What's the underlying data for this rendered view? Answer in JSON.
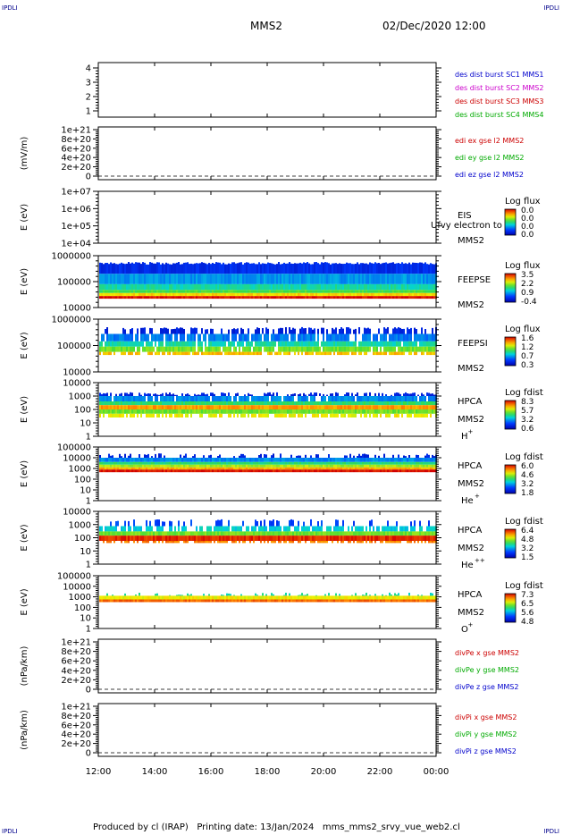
{
  "corners": {
    "tl": "IPDLI",
    "tr": "IPDLI",
    "bl": "IPDLI",
    "br": "IPDLI"
  },
  "header": {
    "spacecraft": "MMS2",
    "datetime": "02/Dec/2020 12:00"
  },
  "footer": {
    "text": "Produced by cl (IRAP)   Printing date: 13/Jan/2024   mms_mms2_srvy_vue_web2.cl"
  },
  "colors": {
    "panel_bg": "#ffffff",
    "axis": "#000000",
    "corner_text": "#00008b"
  },
  "chart_data": [
    {
      "type": "line",
      "ticks": [
        "4",
        "3",
        "2",
        "1"
      ],
      "ylim": [
        0.5,
        4.5
      ],
      "legend": [
        {
          "name": "des dist burst SC1 MMS1",
          "color": "#0000cc"
        },
        {
          "name": "des dist burst SC2 MMS2",
          "color": "#cc00cc"
        },
        {
          "name": "des dist burst SC3 MMS3",
          "color": "#cc0000"
        },
        {
          "name": "des dist burst SC4 MMS4",
          "color": "#00aa00"
        }
      ]
    },
    {
      "type": "line",
      "ylabel": "(mV/m)",
      "ticks": [
        "1e+21",
        "8e+20",
        "6e+20",
        "4e+20",
        "2e+20",
        "0"
      ],
      "ylim": [
        0,
        1e+21
      ],
      "legend": [
        {
          "name": "edi ex gse l2 MMS2",
          "color": "#cc0000"
        },
        {
          "name": "edi ey gse l2 MMS2",
          "color": "#00aa00"
        },
        {
          "name": "edi ez gse l2 MMS2",
          "color": "#0000cc"
        }
      ]
    },
    {
      "type": "heatmap",
      "ylabel": "E (eV)",
      "ticks": [
        "1e+07",
        "1e+06",
        "1e+05",
        "1e+04"
      ],
      "ylim": [
        10000.0,
        10000000.0
      ],
      "scale": "log",
      "instrument": "EIS",
      "sc": "MMS2",
      "overlay": "Ufvy electron to",
      "cbar_title": "Log flux",
      "cbar_ticks": [
        "0.0",
        "0.0",
        "0.0",
        "0.0"
      ]
    },
    {
      "type": "heatmap",
      "ylabel": "E (eV)",
      "ticks": [
        "1000000",
        "100000",
        "10000"
      ],
      "ylim": [
        10000.0,
        1000000.0
      ],
      "scale": "log",
      "instrument": "FEEPSE",
      "sc": "MMS2",
      "cbar_title": "Log flux",
      "cbar_ticks": [
        "3.5",
        "2.2",
        "0.9",
        "-0.4"
      ]
    },
    {
      "type": "heatmap",
      "ylabel": "E (eV)",
      "ticks": [
        "1000000",
        "100000",
        "10000"
      ],
      "ylim": [
        10000.0,
        1000000.0
      ],
      "scale": "log",
      "instrument": "FEEPSI",
      "sc": "MMS2",
      "cbar_title": "Log flux",
      "cbar_ticks": [
        "1.6",
        "1.2",
        "0.7",
        "0.3"
      ]
    },
    {
      "type": "heatmap",
      "ylabel": "E (eV)",
      "ticks": [
        "10000",
        "1000",
        "100",
        "10",
        "1"
      ],
      "ylim": [
        1,
        40000.0
      ],
      "scale": "log",
      "instrument": "HPCA",
      "sc": "MMS2",
      "species": "H",
      "species_sup": "+",
      "cbar_title": "Log fdist",
      "cbar_ticks": [
        "8.3",
        "5.7",
        "3.2",
        "0.6"
      ]
    },
    {
      "type": "heatmap",
      "ylabel": "E (eV)",
      "ticks": [
        "100000",
        "10000",
        "1000",
        "100",
        "10",
        "1"
      ],
      "ylim": [
        1,
        100000.0
      ],
      "scale": "log",
      "instrument": "HPCA",
      "sc": "MMS2",
      "species": "He",
      "species_sup": "+",
      "cbar_title": "Log fdist",
      "cbar_ticks": [
        "6.0",
        "4.6",
        "3.2",
        "1.8"
      ]
    },
    {
      "type": "heatmap",
      "ylabel": "E (eV)",
      "ticks": [
        "10000",
        "1000",
        "100",
        "10",
        "1"
      ],
      "ylim": [
        1,
        40000.0
      ],
      "scale": "log",
      "instrument": "HPCA",
      "sc": "MMS2",
      "species": "He",
      "species_sup": "++",
      "cbar_title": "Log fdist",
      "cbar_ticks": [
        "6.4",
        "4.8",
        "3.2",
        "1.5"
      ]
    },
    {
      "type": "heatmap",
      "ylabel": "E (eV)",
      "ticks": [
        "100000",
        "10000",
        "1000",
        "100",
        "10",
        "1"
      ],
      "ylim": [
        1,
        100000.0
      ],
      "scale": "log",
      "instrument": "HPCA",
      "sc": "MMS2",
      "species": "O",
      "species_sup": "+",
      "cbar_title": "Log fdist",
      "cbar_ticks": [
        "7.3",
        "6.5",
        "5.6",
        "4.8"
      ]
    },
    {
      "type": "line",
      "ylabel": "(nPa/km)",
      "ticks": [
        "1e+21",
        "8e+20",
        "6e+20",
        "4e+20",
        "2e+20",
        "0"
      ],
      "ylim": [
        0,
        1e+21
      ],
      "legend": [
        {
          "name": "divPe x gse MMS2",
          "color": "#cc0000"
        },
        {
          "name": "divPe y gse MMS2",
          "color": "#00aa00"
        },
        {
          "name": "divPe z gse MMS2",
          "color": "#0000cc"
        }
      ]
    },
    {
      "type": "line",
      "ylabel": "(nPa/km)",
      "ticks": [
        "1e+21",
        "8e+20",
        "6e+20",
        "4e+20",
        "2e+20",
        "0"
      ],
      "ylim": [
        0,
        1e+21
      ],
      "legend": [
        {
          "name": "divPi x gse MMS2",
          "color": "#cc0000"
        },
        {
          "name": "divPi y gse MMS2",
          "color": "#00aa00"
        },
        {
          "name": "divPi z gse MMS2",
          "color": "#0000cc"
        }
      ]
    }
  ],
  "x_axis": {
    "ticks": [
      "12:00",
      "14:00",
      "16:00",
      "18:00",
      "20:00",
      "22:00",
      "00:00"
    ]
  }
}
